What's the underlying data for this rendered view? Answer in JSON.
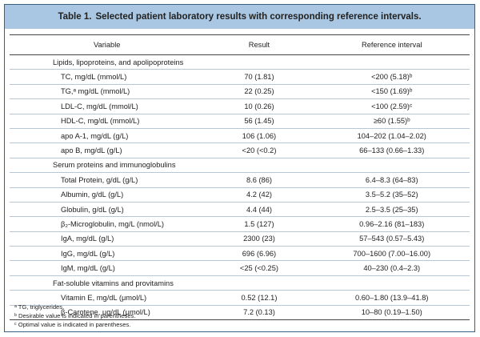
{
  "title": {
    "number": "Table 1.",
    "text": "Selected patient laboratory results with corresponding reference intervals."
  },
  "columns": [
    "Variable",
    "Result",
    "Reference interval"
  ],
  "rows": [
    {
      "type": "section",
      "variable": "Lipids, lipoproteins, and apolipoproteins"
    },
    {
      "type": "item",
      "variable": "TC, mg/dL (mmol/L)",
      "result": "70 (1.81)",
      "reference": "<200 (5.18)ᵇ"
    },
    {
      "type": "item",
      "variable": "TG,ᵃ mg/dL (mmol/L)",
      "result": "22 (0.25)",
      "reference": "<150 (1.69)ᵇ"
    },
    {
      "type": "item",
      "variable": "LDL-C, mg/dL (mmol/L)",
      "result": "10 (0.26)",
      "reference": "<100 (2.59)ᶜ"
    },
    {
      "type": "item",
      "variable": "HDL-C, mg/dL (mmol/L)",
      "result": "56 (1.45)",
      "reference": "≥60 (1.55)ᵇ"
    },
    {
      "type": "item",
      "variable": "apo A-1, mg/dL (g/L)",
      "result": "106 (1.06)",
      "reference": "104–202 (1.04–2.02)"
    },
    {
      "type": "item",
      "variable": "apo B, mg/dL (g/L)",
      "result": "<20 (<0.2)",
      "reference": "66–133 (0.66–1.33)"
    },
    {
      "type": "section",
      "variable": "Serum proteins and immunoglobulins"
    },
    {
      "type": "item",
      "variable": "Total Protein, g/dL (g/L)",
      "result": "8.6 (86)",
      "reference": "6.4–8.3 (64–83)"
    },
    {
      "type": "item",
      "variable": "Albumin, g/dL (g/L)",
      "result": "4.2 (42)",
      "reference": "3.5–5.2 (35–52)"
    },
    {
      "type": "item",
      "variable": "Globulin, g/dL (g/L)",
      "result": "4.4 (44)",
      "reference": "2.5–3.5 (25–35)"
    },
    {
      "type": "item",
      "variable": "β₂-Microglobulin, mg/L (nmol/L)",
      "result": "1.5 (127)",
      "reference": "0.96–2.16 (81–183)"
    },
    {
      "type": "item",
      "variable": "IgA, mg/dL (g/L)",
      "result": "2300 (23)",
      "reference": "57–543 (0.57–5.43)"
    },
    {
      "type": "item",
      "variable": "IgG, mg/dL (g/L)",
      "result": "696 (6.96)",
      "reference": "700–1600 (7.00–16.00)"
    },
    {
      "type": "item",
      "variable": "IgM, mg/dL (g/L)",
      "result": "<25 (<0.25)",
      "reference": "40–230 (0.4–2.3)"
    },
    {
      "type": "section",
      "variable": "Fat-soluble vitamins and provitamins"
    },
    {
      "type": "item",
      "variable": "Vitamin E, mg/dL (μmol/L)",
      "result": "0.52 (12.1)",
      "reference": "0.60–1.80 (13.9–41.8)"
    },
    {
      "type": "item",
      "variable": "β-Carotene, μg/dL (μmol/L)",
      "result": "7.2 (0.13)",
      "reference": "10–80 (0.19–1.50)"
    }
  ],
  "footnotes": [
    "ᵃ TG, triglycerides.",
    "ᵇ Desirable value is indicated in parentheses.",
    "ᶜ Optimal value is indicated in parentheses."
  ]
}
